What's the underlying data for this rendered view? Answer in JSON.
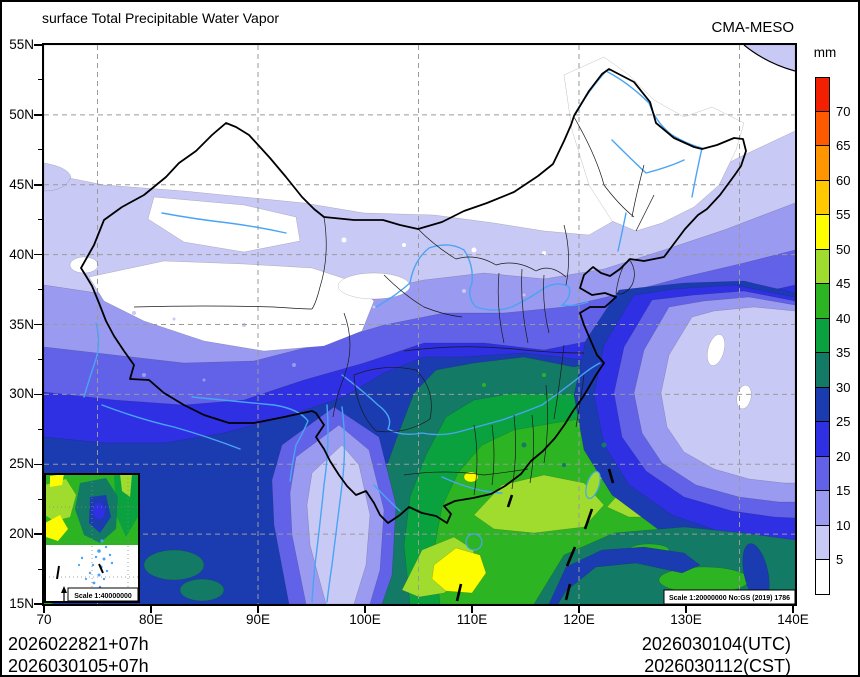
{
  "header": {
    "title": "surface Total Precipitable Water Vapor",
    "model": "CMA-MESO"
  },
  "colorbar": {
    "unit": "mm",
    "tick_labels": [
      "70",
      "65",
      "60",
      "55",
      "50",
      "45",
      "40",
      "35",
      "30",
      "25",
      "20",
      "15",
      "10",
      "5"
    ],
    "colors_top_to_bottom": [
      "#f22000",
      "#ff5a00",
      "#ff9600",
      "#ffc800",
      "#fdfd00",
      "#9fdc2d",
      "#2db422",
      "#0aa23f",
      "#137a66",
      "#1b3cb0",
      "#2f2fe3",
      "#6262e9",
      "#9a9af0",
      "#c9c9f6",
      "#ffffff"
    ]
  },
  "axes": {
    "y_labels": [
      "55N",
      "50N",
      "45N",
      "40N",
      "35N",
      "30N",
      "25N",
      "20N",
      "15N"
    ],
    "x_labels": [
      "70",
      "80E",
      "90E",
      "100E",
      "110E",
      "120E",
      "130E",
      "140E"
    ]
  },
  "map": {
    "scale_note": "Scale 1:20000000 No:GS (2019) 1786",
    "inset_scale_note": "Scale 1:40000000"
  },
  "footer": {
    "init_line1": "2026022821+07h",
    "init_line2": "2026030105+07h",
    "valid_line1": "2026030104(UTC)",
    "valid_line2": "2026030112(CST)"
  }
}
